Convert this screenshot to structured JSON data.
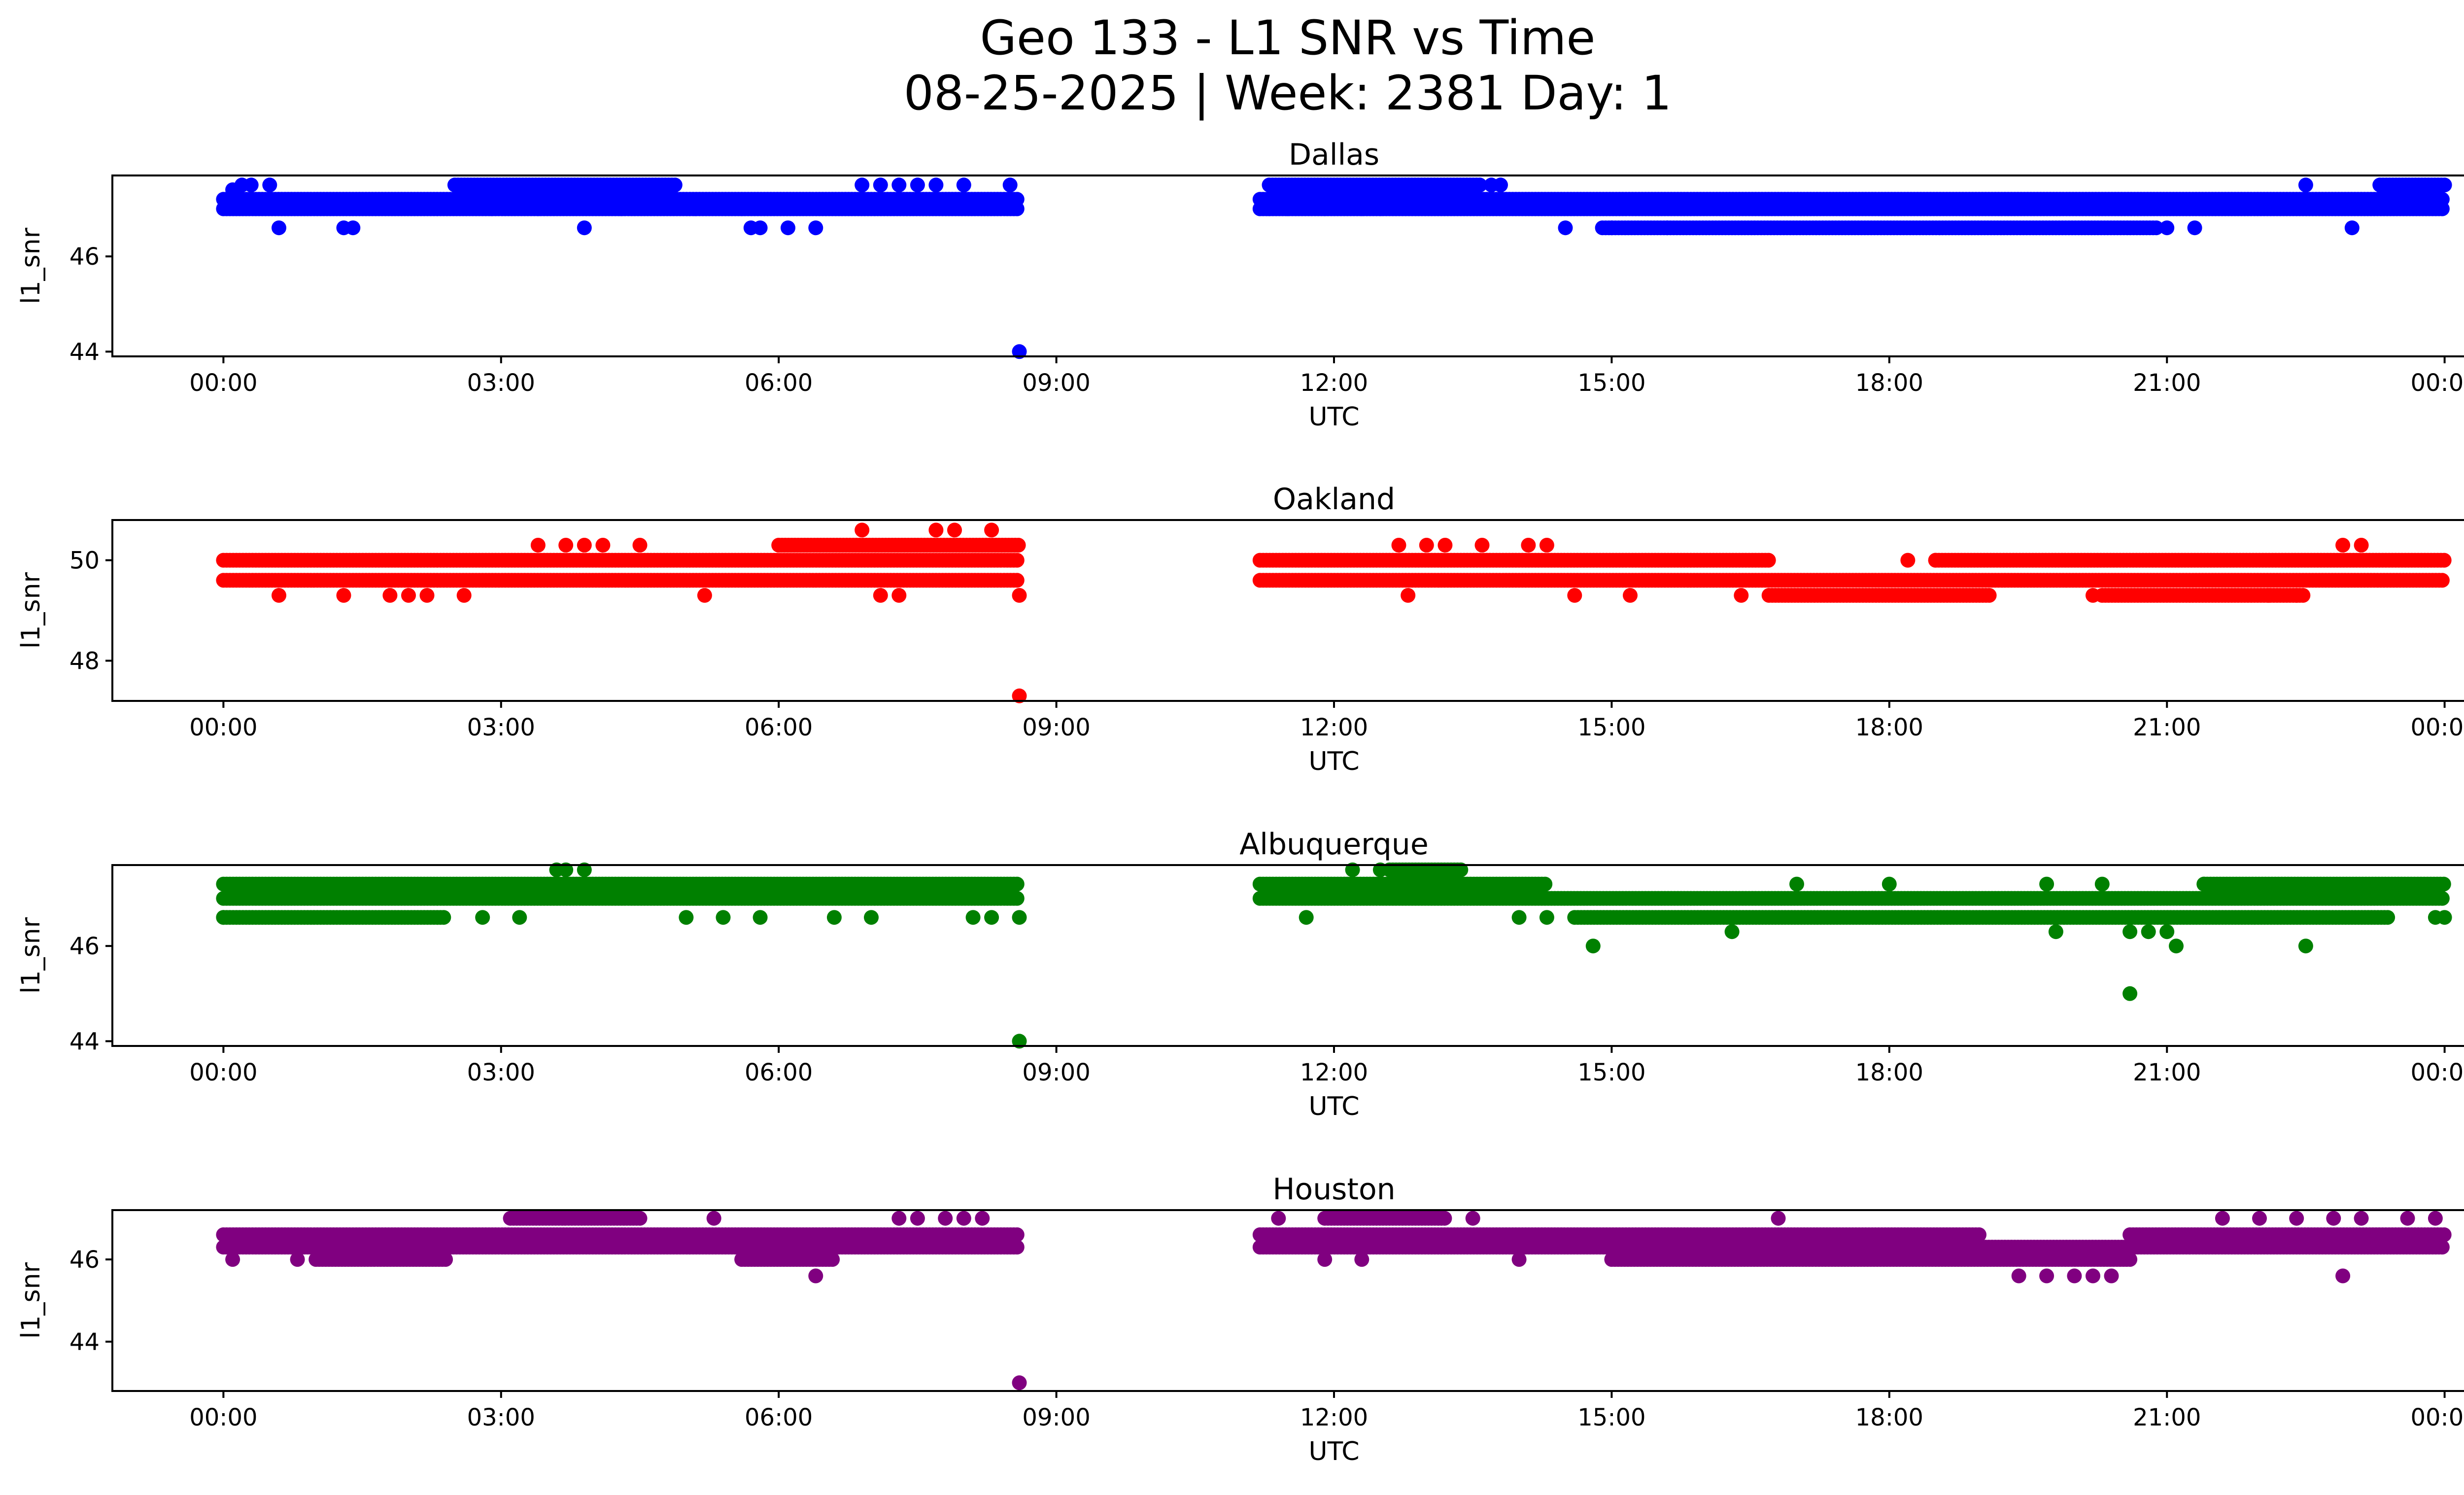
{
  "figure": {
    "title_line1": "Geo 133 - L1 SNR vs Time",
    "title_line2": "08-25-2025 | Week: 2381 Day: 1"
  },
  "chart_data": [
    {
      "type": "scatter",
      "title": "Dallas",
      "xlabel": "UTC",
      "ylabel": "l1_snr",
      "color": "#0000ff",
      "xlim_hours": [
        -1.2,
        25.2
      ],
      "ylim": [
        43.9,
        47.7
      ],
      "yticks": [
        44,
        46
      ],
      "ytick_labels": [
        "44",
        "46"
      ],
      "xtick_hours": [
        0,
        3,
        6,
        9,
        12,
        15,
        18,
        21,
        24
      ],
      "xtick_labels": [
        "00:00",
        "03:00",
        "06:00",
        "09:00",
        "12:00",
        "15:00",
        "18:00",
        "21:00",
        "00:00"
      ],
      "coverage_hours": [
        [
          0.0,
          8.6
        ],
        [
          11.2,
          24.0
        ]
      ],
      "bands": [
        {
          "value": 47.2,
          "ranges": [
            [
              0.0,
              8.6
            ],
            [
              11.2,
              24.0
            ]
          ]
        },
        {
          "value": 47.0,
          "ranges": [
            [
              0.0,
              8.6
            ],
            [
              11.2,
              24.0
            ]
          ]
        },
        {
          "value": 47.5,
          "ranges": [
            [
              2.5,
              4.9
            ],
            [
              11.3,
              13.6
            ],
            [
              23.3,
              24.0
            ]
          ]
        },
        {
          "value": 46.6,
          "ranges": [
            [
              14.9,
              20.9
            ]
          ]
        }
      ],
      "points": [
        [
          0.1,
          47.4
        ],
        [
          0.2,
          47.5
        ],
        [
          0.3,
          47.5
        ],
        [
          0.5,
          47.5
        ],
        [
          0.6,
          46.6
        ],
        [
          1.3,
          46.6
        ],
        [
          1.4,
          46.6
        ],
        [
          2.9,
          47.0
        ],
        [
          3.4,
          47.0
        ],
        [
          3.9,
          46.6
        ],
        [
          4.3,
          47.0
        ],
        [
          5.1,
          47.0
        ],
        [
          5.6,
          47.0
        ],
        [
          5.7,
          46.6
        ],
        [
          5.8,
          46.6
        ],
        [
          6.1,
          46.6
        ],
        [
          6.4,
          46.6
        ],
        [
          6.9,
          47.5
        ],
        [
          7.1,
          47.5
        ],
        [
          7.3,
          47.5
        ],
        [
          7.5,
          47.5
        ],
        [
          7.7,
          47.5
        ],
        [
          8.0,
          47.5
        ],
        [
          8.5,
          47.5
        ],
        [
          8.6,
          44.0
        ],
        [
          11.3,
          47.0
        ],
        [
          11.5,
          47.0
        ],
        [
          11.9,
          47.0
        ],
        [
          12.3,
          47.0
        ],
        [
          12.5,
          47.0
        ],
        [
          13.7,
          47.5
        ],
        [
          13.8,
          47.5
        ],
        [
          14.5,
          46.6
        ],
        [
          15.0,
          46.6
        ],
        [
          15.6,
          46.6
        ],
        [
          21.0,
          46.6
        ],
        [
          21.3,
          46.6
        ],
        [
          22.5,
          47.5
        ],
        [
          23.0,
          46.6
        ]
      ]
    },
    {
      "type": "scatter",
      "title": "Oakland",
      "xlabel": "UTC",
      "ylabel": "l1_snr",
      "color": "#ff0000",
      "xlim_hours": [
        -1.2,
        25.2
      ],
      "ylim": [
        47.2,
        50.8
      ],
      "yticks": [
        48,
        50
      ],
      "ytick_labels": [
        "48",
        "50"
      ],
      "xtick_hours": [
        0,
        3,
        6,
        9,
        12,
        15,
        18,
        21,
        24
      ],
      "xtick_labels": [
        "00:00",
        "03:00",
        "06:00",
        "09:00",
        "12:00",
        "15:00",
        "18:00",
        "21:00",
        "00:00"
      ],
      "coverage_hours": [
        [
          0.0,
          8.6
        ],
        [
          11.2,
          24.0
        ]
      ],
      "bands": [
        {
          "value": 50.0,
          "ranges": [
            [
              0.0,
              8.6
            ],
            [
              11.2,
              16.7
            ],
            [
              18.5,
              24.0
            ]
          ]
        },
        {
          "value": 49.6,
          "ranges": [
            [
              0.0,
              8.6
            ],
            [
              11.2,
              24.0
            ]
          ]
        },
        {
          "value": 50.3,
          "ranges": [
            [
              6.0,
              8.6
            ]
          ]
        },
        {
          "value": 49.3,
          "ranges": [
            [
              16.7,
              19.1
            ],
            [
              20.3,
              22.5
            ]
          ]
        }
      ],
      "points": [
        [
          0.6,
          49.3
        ],
        [
          1.3,
          49.3
        ],
        [
          1.8,
          49.3
        ],
        [
          2.0,
          49.3
        ],
        [
          2.2,
          49.3
        ],
        [
          2.6,
          49.3
        ],
        [
          3.4,
          50.3
        ],
        [
          3.7,
          50.3
        ],
        [
          3.9,
          50.3
        ],
        [
          4.1,
          50.3
        ],
        [
          4.5,
          50.3
        ],
        [
          5.2,
          49.3
        ],
        [
          6.9,
          50.6
        ],
        [
          7.1,
          49.3
        ],
        [
          7.3,
          49.3
        ],
        [
          7.7,
          50.6
        ],
        [
          7.9,
          50.6
        ],
        [
          8.3,
          50.6
        ],
        [
          8.6,
          47.3
        ],
        [
          8.6,
          49.3
        ],
        [
          12.7,
          50.3
        ],
        [
          12.8,
          49.3
        ],
        [
          13.0,
          50.3
        ],
        [
          13.2,
          50.3
        ],
        [
          13.6,
          50.3
        ],
        [
          14.1,
          50.3
        ],
        [
          14.3,
          50.3
        ],
        [
          14.6,
          49.3
        ],
        [
          15.2,
          49.3
        ],
        [
          16.4,
          49.3
        ],
        [
          18.2,
          50.0
        ],
        [
          18.5,
          50.0
        ],
        [
          20.2,
          49.3
        ],
        [
          22.1,
          49.3
        ],
        [
          22.4,
          49.3
        ],
        [
          22.9,
          50.3
        ],
        [
          23.1,
          50.3
        ]
      ]
    },
    {
      "type": "scatter",
      "title": "Albuquerque",
      "xlabel": "UTC",
      "ylabel": "l1_snr",
      "color": "#008000",
      "xlim_hours": [
        -1.2,
        25.2
      ],
      "ylim": [
        43.9,
        47.7
      ],
      "yticks": [
        44,
        46
      ],
      "ytick_labels": [
        "44",
        "46"
      ],
      "xtick_hours": [
        0,
        3,
        6,
        9,
        12,
        15,
        18,
        21,
        24
      ],
      "xtick_labels": [
        "00:00",
        "03:00",
        "06:00",
        "09:00",
        "12:00",
        "15:00",
        "18:00",
        "21:00",
        "00:00"
      ],
      "coverage_hours": [
        [
          0.0,
          8.6
        ],
        [
          11.2,
          24.0
        ]
      ],
      "bands": [
        {
          "value": 47.3,
          "ranges": [
            [
              0.0,
              8.6
            ],
            [
              11.2,
              14.3
            ],
            [
              21.4,
              24.0
            ]
          ]
        },
        {
          "value": 47.0,
          "ranges": [
            [
              0.0,
              8.6
            ],
            [
              11.2,
              24.0
            ]
          ]
        },
        {
          "value": 46.6,
          "ranges": [
            [
              0.0,
              2.4
            ],
            [
              14.6,
              23.4
            ]
          ]
        },
        {
          "value": 47.6,
          "ranges": [
            [
              12.6,
              13.4
            ]
          ]
        }
      ],
      "points": [
        [
          0.0,
          46.6
        ],
        [
          2.8,
          46.6
        ],
        [
          3.2,
          46.6
        ],
        [
          3.6,
          47.6
        ],
        [
          3.7,
          47.6
        ],
        [
          3.9,
          47.6
        ],
        [
          5.0,
          46.6
        ],
        [
          5.4,
          46.6
        ],
        [
          5.8,
          46.6
        ],
        [
          6.6,
          46.6
        ],
        [
          7.0,
          46.6
        ],
        [
          8.1,
          46.6
        ],
        [
          8.3,
          46.6
        ],
        [
          8.6,
          44.0
        ],
        [
          8.6,
          46.6
        ],
        [
          11.7,
          46.6
        ],
        [
          12.2,
          47.6
        ],
        [
          12.5,
          47.6
        ],
        [
          14.0,
          46.6
        ],
        [
          14.3,
          46.6
        ],
        [
          14.8,
          46.0
        ],
        [
          16.3,
          46.3
        ],
        [
          17.0,
          47.3
        ],
        [
          18.0,
          47.3
        ],
        [
          19.7,
          47.3
        ],
        [
          19.8,
          46.3
        ],
        [
          20.3,
          47.3
        ],
        [
          20.6,
          45.0
        ],
        [
          20.6,
          46.3
        ],
        [
          20.8,
          46.3
        ],
        [
          21.0,
          46.3
        ],
        [
          21.1,
          46.0
        ],
        [
          21.4,
          47.3
        ],
        [
          22.5,
          46.0
        ],
        [
          23.9,
          46.6
        ],
        [
          24.0,
          46.6
        ]
      ]
    },
    {
      "type": "scatter",
      "title": "Houston",
      "xlabel": "UTC",
      "ylabel": "l1_snr",
      "color": "#800080",
      "xlim_hours": [
        -1.2,
        25.2
      ],
      "ylim": [
        42.8,
        47.2
      ],
      "yticks": [
        44,
        46
      ],
      "ytick_labels": [
        "44",
        "46"
      ],
      "xtick_hours": [
        0,
        3,
        6,
        9,
        12,
        15,
        18,
        21,
        24
      ],
      "xtick_labels": [
        "00:00",
        "03:00",
        "06:00",
        "09:00",
        "12:00",
        "15:00",
        "18:00",
        "21:00",
        "00:00"
      ],
      "coverage_hours": [
        [
          0.0,
          8.6
        ],
        [
          11.2,
          24.0
        ]
      ],
      "bands": [
        {
          "value": 46.6,
          "ranges": [
            [
              0.0,
              8.6
            ],
            [
              11.2,
              19.0
            ],
            [
              20.6,
              24.0
            ]
          ]
        },
        {
          "value": 46.3,
          "ranges": [
            [
              0.0,
              8.6
            ],
            [
              11.2,
              24.0
            ]
          ]
        },
        {
          "value": 46.0,
          "ranges": [
            [
              1.0,
              2.4
            ],
            [
              5.6,
              6.6
            ],
            [
              15.0,
              20.6
            ]
          ]
        },
        {
          "value": 47.0,
          "ranges": [
            [
              3.1,
              4.5
            ],
            [
              11.9,
              13.2
            ]
          ]
        }
      ],
      "points": [
        [
          0.1,
          46.0
        ],
        [
          0.8,
          46.0
        ],
        [
          6.4,
          45.6
        ],
        [
          7.3,
          47.0
        ],
        [
          7.5,
          47.0
        ],
        [
          7.8,
          47.0
        ],
        [
          8.0,
          47.0
        ],
        [
          8.2,
          47.0
        ],
        [
          8.6,
          43.0
        ],
        [
          5.3,
          47.0
        ],
        [
          11.4,
          47.0
        ],
        [
          11.9,
          46.0
        ],
        [
          12.3,
          46.0
        ],
        [
          13.5,
          47.0
        ],
        [
          14.0,
          46.0
        ],
        [
          16.8,
          47.0
        ],
        [
          19.4,
          45.6
        ],
        [
          19.7,
          45.6
        ],
        [
          20.0,
          45.6
        ],
        [
          20.2,
          45.6
        ],
        [
          20.4,
          45.6
        ],
        [
          21.6,
          47.0
        ],
        [
          22.0,
          47.0
        ],
        [
          22.4,
          47.0
        ],
        [
          22.8,
          47.0
        ],
        [
          23.1,
          47.0
        ],
        [
          22.9,
          45.6
        ],
        [
          23.6,
          47.0
        ],
        [
          23.9,
          47.0
        ]
      ]
    }
  ]
}
